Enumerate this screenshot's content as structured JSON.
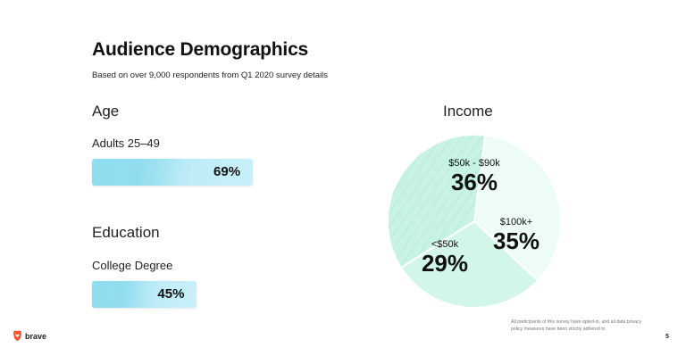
{
  "header": {
    "title": "Audience Demographics",
    "subtitle": "Based on over 9,000 respondents from Q1 2020 survey details"
  },
  "age": {
    "heading": "Age",
    "label": "Adults 25–49",
    "value_label": "69%",
    "value": 69
  },
  "education": {
    "heading": "Education",
    "label": "College Degree",
    "value_label": "45%",
    "value": 45
  },
  "income": {
    "heading": "Income"
  },
  "chart_data": {
    "type": "pie",
    "title": "Income",
    "slices": [
      {
        "category": "$50k - $90k",
        "label": "36%",
        "value": 36,
        "color": "#c8f3e3"
      },
      {
        "category": "$100k+",
        "label": "35%",
        "value": 35,
        "color": "#eefcf6"
      },
      {
        "category": "<$50k",
        "label": "29%",
        "value": 29,
        "color": "#d2f6e8"
      }
    ]
  },
  "footer": {
    "brand": "brave",
    "brand_color": "#fb542b",
    "note": "All participants of this survey have opted-in, and all data privacy policy measures have been strictly adhered to",
    "page": "5"
  }
}
